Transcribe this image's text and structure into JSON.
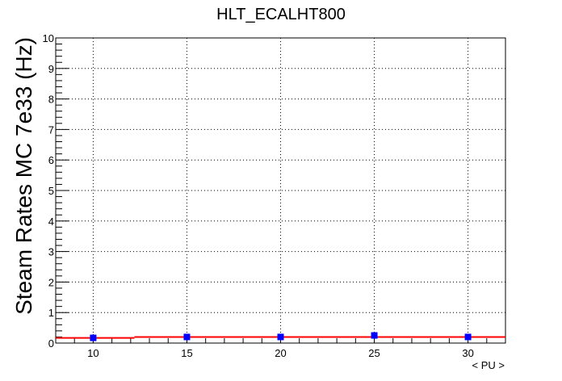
{
  "chart_data": {
    "type": "scatter",
    "title": "HLT_ECALHT800",
    "xlabel": "< PU >",
    "ylabel": "Steam Rates MC 7e33 (Hz)",
    "xlim": [
      8,
      32
    ],
    "ylim": [
      0,
      10
    ],
    "x_ticks": [
      10,
      15,
      20,
      25,
      30
    ],
    "y_ticks": [
      0,
      1,
      2,
      3,
      4,
      5,
      6,
      7,
      8,
      9,
      10
    ],
    "grid": true,
    "series": [
      {
        "marker_color": "#0000ff",
        "x": [
          10,
          15,
          20,
          25,
          30
        ],
        "y": [
          0.17,
          0.2,
          0.2,
          0.25,
          0.2
        ],
        "y_err": [
          0.06,
          0.06,
          0.06,
          0.07,
          0.06
        ]
      }
    ],
    "fit": {
      "color": "#ff0000",
      "segments": [
        {
          "x": [
            8,
            12.2
          ],
          "y": [
            0.17,
            0.17
          ]
        },
        {
          "x": [
            12.2,
            32
          ],
          "y": [
            0.2,
            0.2
          ]
        }
      ]
    }
  }
}
